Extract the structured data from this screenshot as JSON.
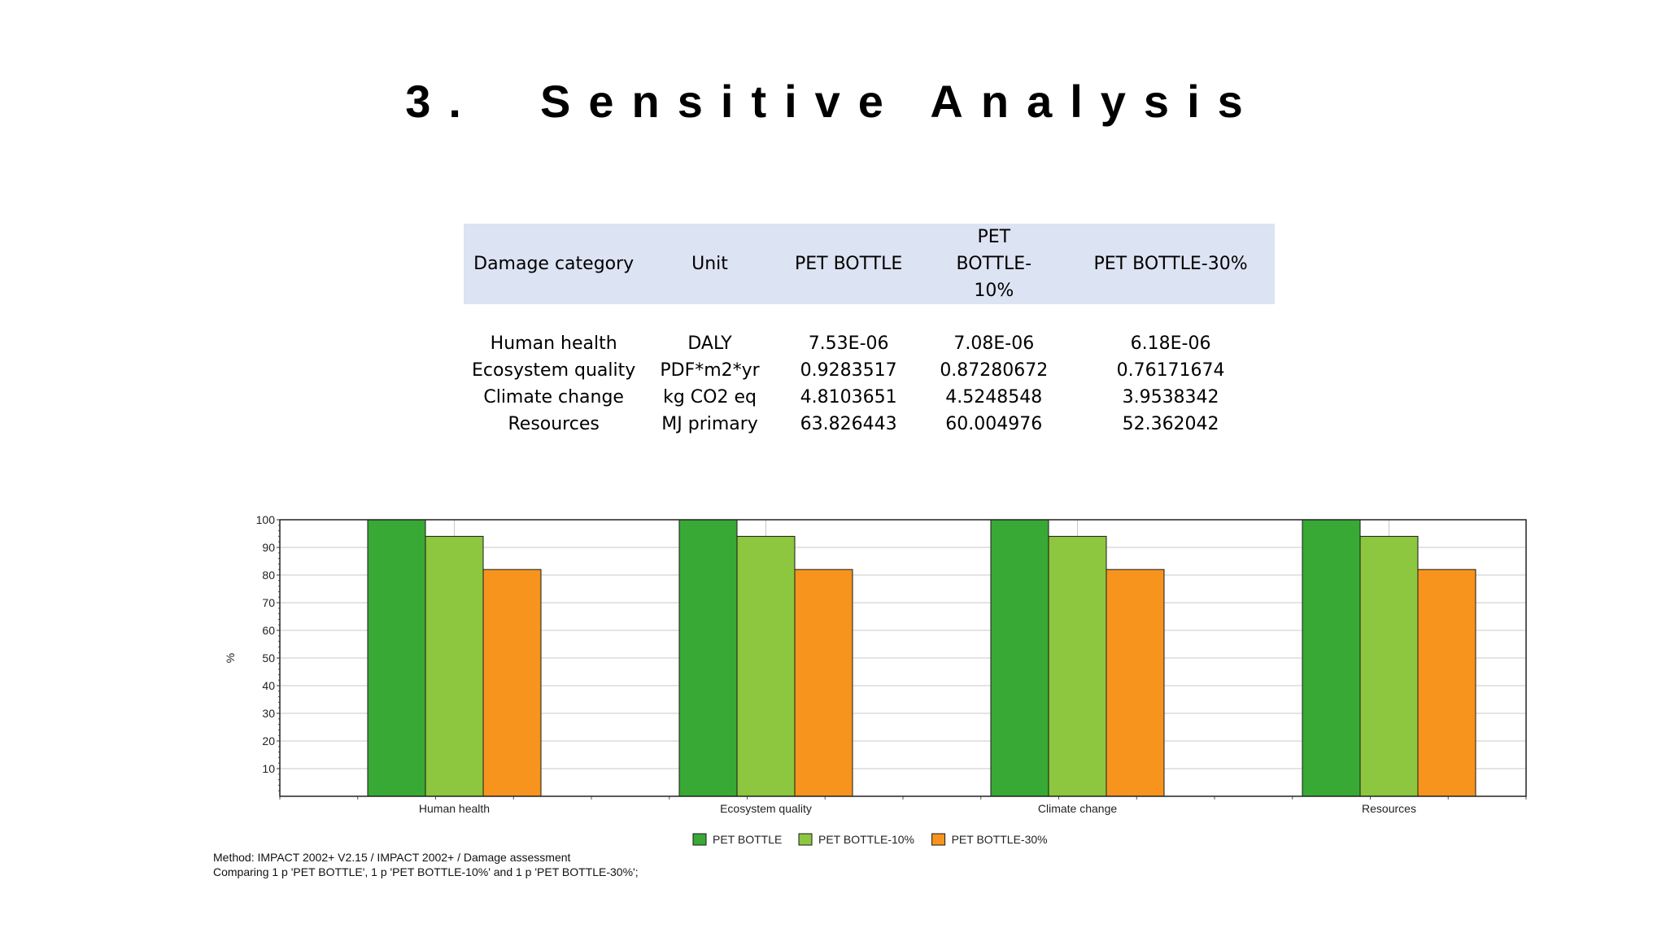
{
  "page": {
    "title": "3.  Sensitive Analysis"
  },
  "table": {
    "headers": [
      "Damage category",
      "Unit",
      "PET BOTTLE",
      "PET BOTTLE-10%",
      "PET BOTTLE-30%"
    ],
    "rows": [
      [
        "Human health",
        "DALY",
        "7.53E-06",
        "7.08E-06",
        "6.18E-06"
      ],
      [
        "Ecosystem quality",
        "PDF*m2*yr",
        "0.9283517",
        "0.87280672",
        "0.76171674"
      ],
      [
        "Climate change",
        "kg CO2 eq",
        "4.8103651",
        "4.5248548",
        "3.9538342"
      ],
      [
        "Resources",
        "MJ primary",
        "63.826443",
        "60.004976",
        "52.362042"
      ]
    ]
  },
  "chart_data": {
    "type": "bar",
    "categories": [
      "Human health",
      "Ecosystem quality",
      "Climate change",
      "Resources"
    ],
    "series": [
      {
        "name": "PET BOTTLE",
        "values": [
          100,
          100,
          100,
          100
        ],
        "color": "#38a935"
      },
      {
        "name": "PET BOTTLE-10%",
        "values": [
          94,
          94,
          94,
          94
        ],
        "color": "#8dc63f"
      },
      {
        "name": "PET BOTTLE-30%",
        "values": [
          82,
          82,
          82,
          82
        ],
        "color": "#f7941d"
      }
    ],
    "ylabel": "%",
    "yticks": [
      10,
      20,
      30,
      40,
      50,
      60,
      70,
      80,
      90,
      100
    ],
    "ylim": [
      0,
      100
    ],
    "grid": true,
    "legend_position": "bottom"
  },
  "footnote": {
    "method": "Method: IMPACT 2002+ V2.15 / IMPACT 2002+ / Damage assessment",
    "comparing": "Comparing 1 p 'PET BOTTLE', 1 p 'PET BOTTLE-10%' and 1 p 'PET BOTTLE-30%';"
  }
}
